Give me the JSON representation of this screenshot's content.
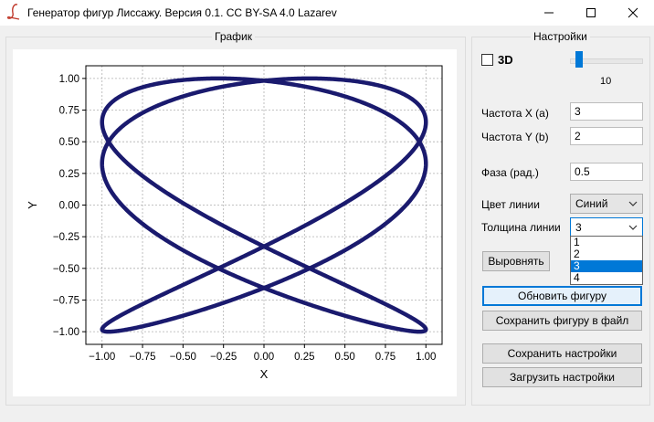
{
  "window": {
    "title": "Генератор фигур Лиссажу. Версия 0.1. CC BY-SA 4.0 Lazarev",
    "app_icon": "script-l-icon",
    "controls": [
      "minimize-icon",
      "maximize-icon",
      "close-icon"
    ]
  },
  "graph_panel": {
    "title": "График"
  },
  "settings_panel": {
    "title": "Настройки",
    "mode_3d": {
      "label": "3D",
      "checked": false
    },
    "slider": {
      "value_label": "10"
    },
    "freq_x": {
      "label": "Частота X (a)",
      "value": "3"
    },
    "freq_y": {
      "label": "Частота Y (b)",
      "value": "2"
    },
    "phase": {
      "label": "Фаза (рад.)",
      "value": "0.5"
    },
    "line_color": {
      "label": "Цвет линии",
      "selected": "Синий"
    },
    "line_width": {
      "label": "Толщина линии",
      "selected": "3",
      "options": [
        "1",
        "2",
        "3",
        "4"
      ]
    },
    "align_button": "Выровнять",
    "update_button": "Обновить фигуру",
    "save_figure_button": "Сохранить фигуру в файл",
    "save_settings_button": "Сохранить настройки",
    "load_settings_button": "Загрузить настройки"
  },
  "colors": {
    "line": "#1a1a6e",
    "accent": "#0078d7"
  },
  "chart_data": {
    "type": "line",
    "curve": "lissajous",
    "freq_x": 3,
    "freq_y": 2,
    "phase": 0.5,
    "xlabel": "X",
    "ylabel": "Y",
    "xlim": [
      -1.1,
      1.1
    ],
    "ylim": [
      -1.1,
      1.1
    ],
    "xticks": [
      "−1.00",
      "−0.75",
      "−0.50",
      "−0.25",
      "0.00",
      "0.25",
      "0.50",
      "0.75",
      "1.00"
    ],
    "yticks": [
      "−1.00",
      "−0.75",
      "−0.50",
      "−0.25",
      "0.00",
      "0.25",
      "0.50",
      "0.75",
      "1.00"
    ],
    "grid": true,
    "line_color": "#1a1a6e",
    "line_width": 3
  }
}
